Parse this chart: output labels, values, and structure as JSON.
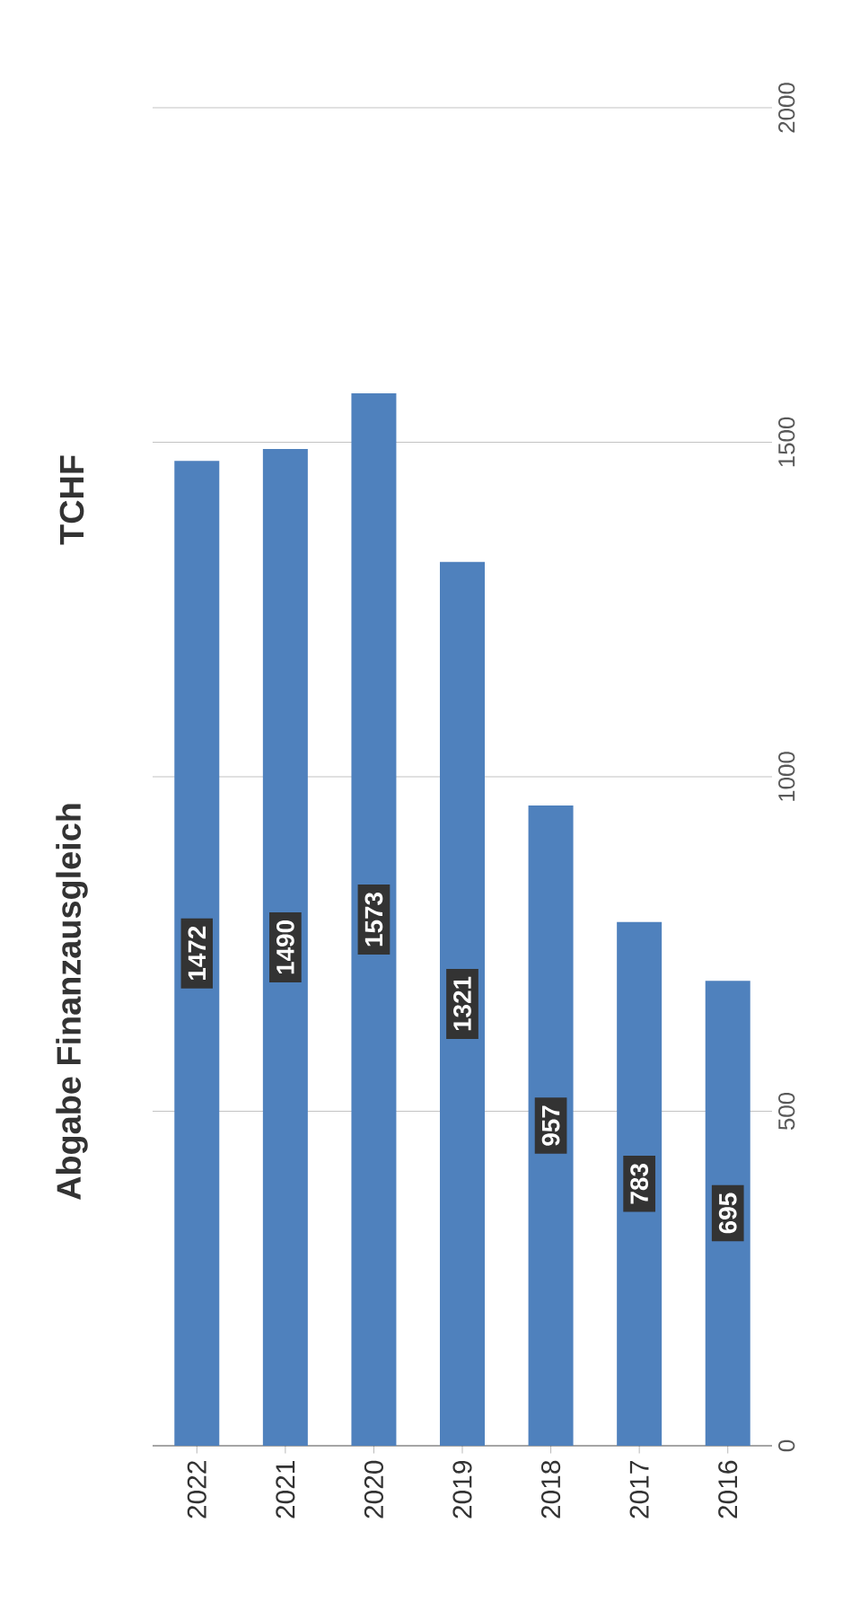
{
  "chart_data": {
    "type": "bar",
    "title": "Abgabe Finanzausgleich",
    "ylabel": "TCHF",
    "categories": [
      "2022",
      "2021",
      "2020",
      "2019",
      "2018",
      "2017",
      "2016"
    ],
    "values": [
      1472,
      1490,
      1573,
      1321,
      957,
      783,
      695
    ],
    "color": "#4f81bd",
    "ylim": [
      0,
      2000
    ],
    "yticks": [
      0,
      500,
      1000,
      1500,
      2000
    ],
    "grid": "y",
    "data_labels": true
  }
}
